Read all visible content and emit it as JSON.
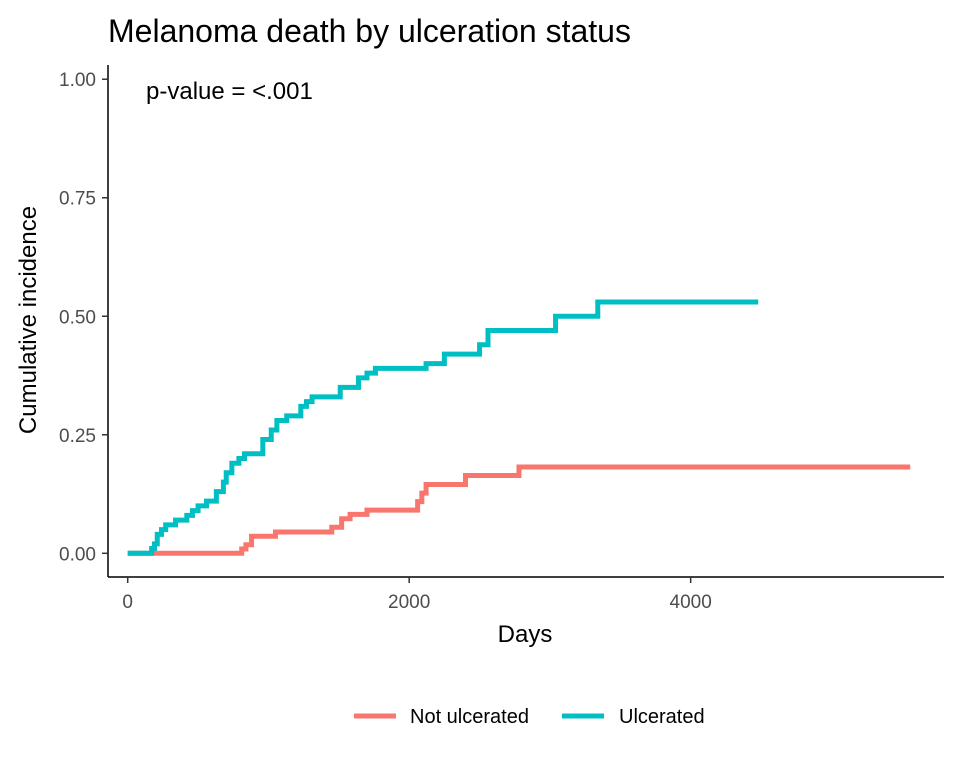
{
  "chart_data": {
    "type": "line",
    "title": "Melanoma death by ulceration status",
    "xlabel": "Days",
    "ylabel": "Cumulative incidence",
    "xlim": [
      -140,
      5800
    ],
    "ylim": [
      -0.05,
      1.03
    ],
    "x_ticks": [
      0,
      2000,
      4000
    ],
    "x_tick_labels": [
      "0",
      "2000",
      "4000"
    ],
    "y_ticks": [
      0,
      0.25,
      0.5,
      0.75,
      1.0
    ],
    "y_tick_labels": [
      "0.00",
      "0.25",
      "0.50",
      "0.75",
      "1.00"
    ],
    "grid": false,
    "legend_position": "bottom",
    "annotation": "p-value = <.001",
    "series": [
      {
        "name": "Not ulcerated",
        "color": "#F8766D",
        "step": true,
        "x": [
          0,
          810,
          840,
          880,
          1050,
          1450,
          1520,
          1580,
          1700,
          2060,
          2090,
          2120,
          2400,
          2780,
          5560
        ],
        "y": [
          0,
          0.009,
          0.018,
          0.036,
          0.045,
          0.055,
          0.073,
          0.082,
          0.091,
          0.109,
          0.127,
          0.145,
          0.164,
          0.182,
          0.182
        ]
      },
      {
        "name": "Ulcerated",
        "color": "#00BFC4",
        "step": true,
        "x": [
          0,
          170,
          190,
          210,
          240,
          270,
          340,
          420,
          460,
          500,
          560,
          630,
          680,
          700,
          740,
          790,
          830,
          960,
          1020,
          1060,
          1130,
          1230,
          1270,
          1310,
          1510,
          1640,
          1700,
          1760,
          2120,
          2250,
          2500,
          2560,
          3040,
          3340,
          4480
        ],
        "y": [
          0,
          0.01,
          0.02,
          0.04,
          0.05,
          0.06,
          0.07,
          0.08,
          0.09,
          0.1,
          0.11,
          0.13,
          0.15,
          0.17,
          0.19,
          0.2,
          0.21,
          0.24,
          0.26,
          0.28,
          0.29,
          0.31,
          0.32,
          0.33,
          0.35,
          0.37,
          0.38,
          0.39,
          0.4,
          0.42,
          0.44,
          0.47,
          0.5,
          0.53,
          0.53
        ]
      }
    ]
  }
}
